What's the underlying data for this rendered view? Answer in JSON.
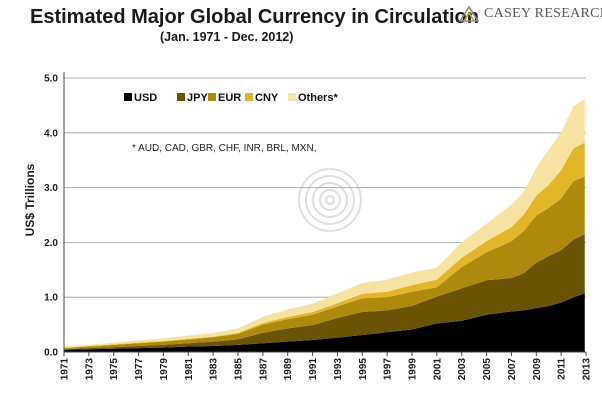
{
  "header": {
    "title": "Estimated Major Global Currency in Circulation",
    "subtitle": "(Jan. 1971 - Dec. 2012)"
  },
  "logo": {
    "text": "CASEY RESEARCH",
    "icon": "casey-research-logo-icon"
  },
  "chart_data": {
    "type": "area",
    "stacked": true,
    "title": "Estimated Major Global Currency in Circulation",
    "subtitle": "(Jan. 1971 - Dec. 2012)",
    "xlabel": "",
    "ylabel": "US$ Trillions",
    "ylim": [
      0,
      5.0
    ],
    "xlim": [
      1971,
      2013
    ],
    "yticks": [
      "0.0",
      "1.0",
      "2.0",
      "3.0",
      "4.0",
      "5.0"
    ],
    "xticks": [
      "1971",
      "1973",
      "1975",
      "1977",
      "1979",
      "1981",
      "1983",
      "1985",
      "1987",
      "1989",
      "1991",
      "1993",
      "1995",
      "1997",
      "1999",
      "2001",
      "2003",
      "2005",
      "2007",
      "2009",
      "2011",
      "2013"
    ],
    "grid": "horizontal",
    "legend_position": "top-left",
    "annotation": "* AUD, CAD, GBR, CHF, INR, BRL, MXN,",
    "x": [
      1971,
      1973,
      1975,
      1977,
      1979,
      1981,
      1983,
      1985,
      1987,
      1989,
      1991,
      1993,
      1995,
      1997,
      1999,
      2001,
      2003,
      2005,
      2007,
      2008,
      2009,
      2010,
      2011,
      2012,
      2012.9
    ],
    "series": [
      {
        "name": "USD",
        "color": "#000000",
        "values": [
          0.04,
          0.05,
          0.06,
          0.07,
          0.08,
          0.1,
          0.11,
          0.13,
          0.16,
          0.19,
          0.22,
          0.26,
          0.31,
          0.36,
          0.41,
          0.52,
          0.57,
          0.68,
          0.74,
          0.76,
          0.8,
          0.84,
          0.9,
          1.0,
          1.07
        ]
      },
      {
        "name": "JPY",
        "color": "#6b5306",
        "values": [
          0.01,
          0.02,
          0.03,
          0.04,
          0.05,
          0.06,
          0.08,
          0.1,
          0.19,
          0.24,
          0.27,
          0.36,
          0.42,
          0.4,
          0.43,
          0.49,
          0.59,
          0.63,
          0.61,
          0.68,
          0.83,
          0.91,
          0.96,
          1.05,
          1.08
        ]
      },
      {
        "name": "EUR",
        "color": "#ae8a0c",
        "values": [
          0.02,
          0.03,
          0.04,
          0.05,
          0.06,
          0.07,
          0.08,
          0.1,
          0.15,
          0.17,
          0.19,
          0.21,
          0.25,
          0.24,
          0.26,
          0.17,
          0.39,
          0.51,
          0.67,
          0.77,
          0.86,
          0.88,
          0.94,
          1.07,
          1.05
        ]
      },
      {
        "name": "CNY",
        "color": "#e2b628",
        "values": [
          0.01,
          0.01,
          0.01,
          0.01,
          0.01,
          0.01,
          0.01,
          0.02,
          0.03,
          0.04,
          0.05,
          0.06,
          0.08,
          0.1,
          0.12,
          0.14,
          0.17,
          0.2,
          0.26,
          0.3,
          0.36,
          0.42,
          0.52,
          0.6,
          0.62
        ]
      },
      {
        "name": "Others*",
        "color": "#f7e3a1",
        "values": [
          0.02,
          0.02,
          0.03,
          0.04,
          0.05,
          0.06,
          0.07,
          0.08,
          0.11,
          0.14,
          0.15,
          0.18,
          0.2,
          0.22,
          0.23,
          0.22,
          0.28,
          0.32,
          0.41,
          0.42,
          0.51,
          0.64,
          0.69,
          0.77,
          0.8
        ]
      }
    ]
  }
}
